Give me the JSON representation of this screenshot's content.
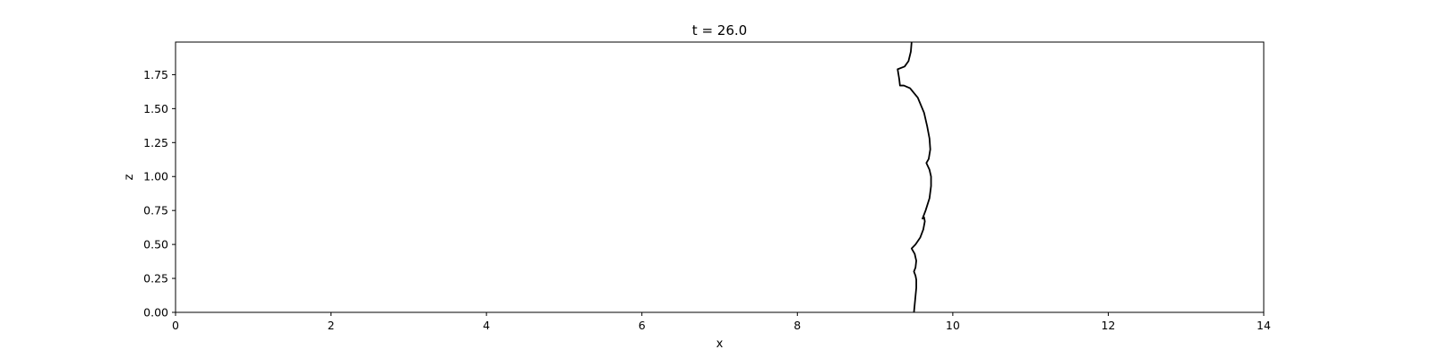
{
  "chart_data": {
    "type": "line",
    "title": "t = 26.0",
    "xlabel": "x",
    "ylabel": "z",
    "xlim": [
      0,
      14
    ],
    "ylim": [
      0,
      1.99
    ],
    "xticks": [
      0,
      2,
      4,
      6,
      8,
      10,
      12,
      14
    ],
    "xtick_labels": [
      "0",
      "2",
      "4",
      "6",
      "8",
      "10",
      "12",
      "14"
    ],
    "yticks": [
      0,
      0.25,
      0.5,
      0.75,
      1.0,
      1.25,
      1.5,
      1.75
    ],
    "ytick_labels": [
      "0.00",
      "0.25",
      "0.50",
      "0.75",
      "1.00",
      "1.25",
      "1.50",
      "1.75"
    ],
    "grid": false,
    "line_color": "#000000",
    "series": [
      {
        "x": [
          9.5,
          9.51,
          9.52,
          9.53,
          9.53,
          9.52,
          9.5,
          9.52,
          9.53,
          9.51,
          9.47,
          9.52,
          9.58,
          9.62,
          9.64,
          9.63,
          9.61,
          9.65,
          9.7,
          9.72,
          9.72,
          9.7,
          9.66,
          9.69,
          9.71,
          9.7,
          9.67,
          9.63,
          9.55,
          9.45,
          9.37,
          9.32,
          9.31,
          9.29,
          9.38,
          9.43,
          9.46,
          9.47
        ],
        "y": [
          0.0,
          0.06,
          0.12,
          0.18,
          0.24,
          0.27,
          0.3,
          0.33,
          0.38,
          0.43,
          0.47,
          0.5,
          0.55,
          0.61,
          0.67,
          0.7,
          0.69,
          0.75,
          0.84,
          0.93,
          1.0,
          1.05,
          1.1,
          1.13,
          1.2,
          1.28,
          1.37,
          1.47,
          1.58,
          1.65,
          1.67,
          1.67,
          1.72,
          1.79,
          1.81,
          1.85,
          1.92,
          1.99
        ]
      }
    ]
  }
}
